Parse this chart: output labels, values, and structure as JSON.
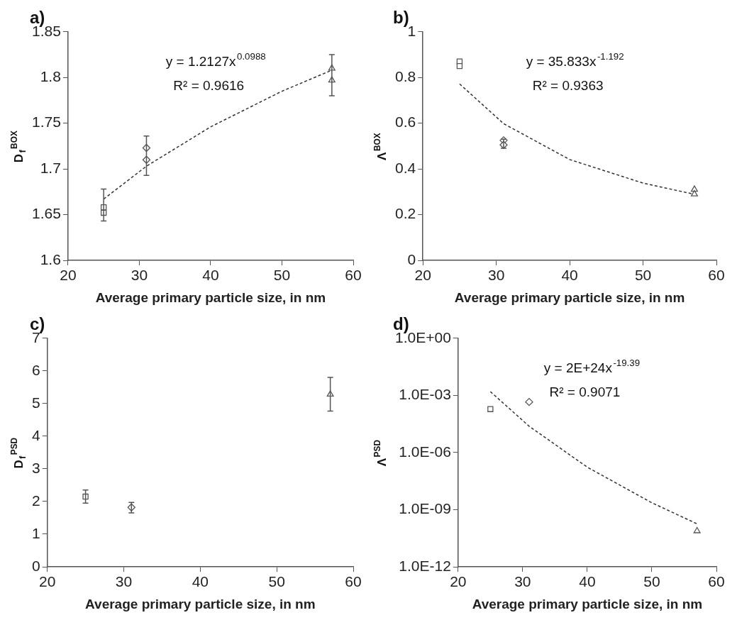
{
  "chart_data": [
    {
      "type": "scatter",
      "title": "a)",
      "xlabel": "Average primary particle size, in nm",
      "ylabel": "D$_{f}$$^{BOX}$",
      "xlim": [
        20,
        60
      ],
      "xticks": [
        20,
        30,
        40,
        50,
        60
      ],
      "ylim": [
        1.6,
        1.85
      ],
      "yticks": [
        1.6,
        1.65,
        1.7,
        1.75,
        1.8,
        1.85
      ],
      "grid": false,
      "legend": false,
      "annotations": [
        "y = 1.2127x$^{0.0988}$",
        "R² = 0.9616"
      ],
      "series": [
        {
          "color": "#555555",
          "marker": "square",
          "x": [
            25,
            25
          ],
          "values": [
            1.658,
            1.652
          ],
          "errors": [
            [
              1.643,
              1.678
            ],
            null
          ]
        },
        {
          "color": "#555555",
          "marker": "diamond",
          "x": [
            31,
            31
          ],
          "values": [
            1.723,
            1.71
          ],
          "errors": [
            null,
            [
              1.693,
              1.736
            ]
          ]
        },
        {
          "color": "#555555",
          "marker": "triangle",
          "x": [
            57,
            57
          ],
          "values": [
            1.81,
            1.797
          ],
          "errors": [
            null,
            [
              1.78,
              1.825
            ]
          ]
        },
        {
          "type": "line",
          "color": "#333333",
          "marker": "none",
          "line_style": "dashed",
          "x": [
            25,
            31,
            40,
            50,
            57
          ],
          "values": [
            1.667,
            1.703,
            1.746,
            1.785,
            1.808
          ]
        }
      ]
    },
    {
      "type": "scatter",
      "title": "b)",
      "xlabel": "Average primary particle size, in nm",
      "ylabel": "Λ$^{BOX}$",
      "xlim": [
        20,
        60
      ],
      "xticks": [
        20,
        30,
        40,
        50,
        60
      ],
      "ylim": [
        0,
        1
      ],
      "yticks": [
        0,
        0.2,
        0.4,
        0.6,
        0.8,
        1
      ],
      "grid": false,
      "legend": false,
      "annotations": [
        "y = 35.833x$^{-1.192}$",
        "R² = 0.9363"
      ],
      "series": [
        {
          "color": "#555555",
          "marker": "square",
          "x": [
            25,
            25
          ],
          "values": [
            0.87,
            0.85
          ]
        },
        {
          "color": "#555555",
          "marker": "diamond",
          "x": [
            31,
            31
          ],
          "values": [
            0.525,
            0.505
          ],
          "errors": [
            null,
            [
              0.49,
              0.53
            ]
          ]
        },
        {
          "color": "#555555",
          "marker": "triangle",
          "x": [
            57,
            57
          ],
          "values": [
            0.31,
            0.29
          ]
        },
        {
          "type": "line",
          "color": "#333333",
          "marker": "none",
          "line_style": "dashed",
          "x": [
            25,
            31,
            40,
            50,
            57
          ],
          "values": [
            0.772,
            0.598,
            0.441,
            0.338,
            0.289
          ]
        }
      ]
    },
    {
      "type": "scatter",
      "title": "c)",
      "xlabel": "Average primary particle size, in nm",
      "ylabel": "D$_{f}$$^{PSD}$",
      "xlim": [
        20,
        60
      ],
      "xticks": [
        20,
        30,
        40,
        50,
        60
      ],
      "ylim": [
        0,
        7
      ],
      "yticks": [
        0,
        1,
        2,
        3,
        4,
        5,
        6,
        7
      ],
      "grid": false,
      "legend": false,
      "series": [
        {
          "color": "#555555",
          "marker": "square",
          "x": [
            25
          ],
          "values": [
            2.15
          ],
          "errors": [
            [
              1.95,
              2.35
            ]
          ]
        },
        {
          "color": "#555555",
          "marker": "diamond",
          "x": [
            31
          ],
          "values": [
            1.82
          ],
          "errors": [
            [
              1.65,
              1.97
            ]
          ]
        },
        {
          "color": "#555555",
          "marker": "triangle",
          "x": [
            57
          ],
          "values": [
            5.28
          ],
          "errors": [
            [
              4.77,
              5.8
            ]
          ]
        }
      ]
    },
    {
      "type": "scatter",
      "title": "d)",
      "xlabel": "Average primary particle size, in nm",
      "ylabel": "Λ$^{PSD}$",
      "log": "y",
      "xlim": [
        20,
        60
      ],
      "xticks": [
        20,
        30,
        40,
        50,
        60
      ],
      "ylim": [
        1e-12,
        1
      ],
      "yticks": [
        {
          "value": 1,
          "label": "1.0E+00"
        },
        {
          "value": 0.001,
          "label": "1.0E-03"
        },
        {
          "value": 1e-06,
          "label": "1.0E-06"
        },
        {
          "value": 1e-09,
          "label": "1.0E-09"
        },
        {
          "value": 1e-12,
          "label": "1.0E-12"
        }
      ],
      "grid": false,
      "legend": false,
      "annotations": [
        "y = 2E+24x$^{-19.39}$",
        "R² = 0.9071"
      ],
      "series": [
        {
          "color": "#555555",
          "marker": "square",
          "x": [
            25
          ],
          "values": [
            0.00019
          ]
        },
        {
          "color": "#555555",
          "marker": "diamond",
          "x": [
            31
          ],
          "values": [
            0.00045
          ]
        },
        {
          "color": "#555555",
          "marker": "triangle",
          "x": [
            57
          ],
          "values": [
            7.6e-11
          ]
        },
        {
          "type": "line",
          "color": "#333333",
          "marker": "none",
          "line_style": "dashed",
          "x": [
            25,
            31,
            40,
            50,
            57
          ],
          "values": [
            0.00157,
            2.4e-05,
            1.7e-07,
            2.3e-09,
            1.8e-10
          ]
        }
      ]
    }
  ]
}
